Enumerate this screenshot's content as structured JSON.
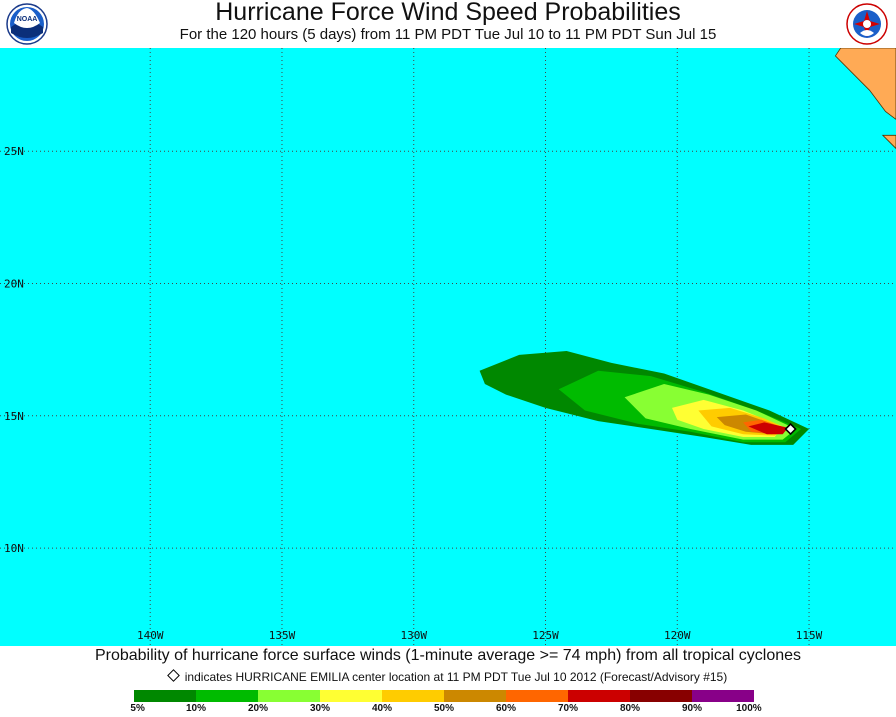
{
  "header": {
    "title": "Hurricane Force Wind Speed Probabilities",
    "subtitle": "For the 120 hours (5 days) from 11 PM PDT Tue Jul 10 to 11 PM PDT Sun Jul 15",
    "left_logo": "noaa-logo",
    "left_logo_text": "NOAA",
    "right_logo": "nws-logo"
  },
  "map": {
    "ocean_color": "#00ffff",
    "land_color": "#ffaa55",
    "lon_range": [
      -145.7,
      -111.7
    ],
    "lat_range": [
      6.3,
      28.9
    ],
    "lat_labels": [
      {
        "lat": 25,
        "text": "25N"
      },
      {
        "lat": 20,
        "text": "20N"
      },
      {
        "lat": 15,
        "text": "15N"
      },
      {
        "lat": 10,
        "text": "10N"
      }
    ],
    "lon_labels": [
      {
        "lon": -140,
        "text": "140W"
      },
      {
        "lon": -135,
        "text": "135W"
      },
      {
        "lon": -130,
        "text": "130W"
      },
      {
        "lon": -125,
        "text": "125W"
      },
      {
        "lon": -120,
        "text": "120W"
      },
      {
        "lon": -115,
        "text": "115W"
      }
    ],
    "storm_center": {
      "lon": -115.7,
      "lat": 14.5
    },
    "probability_contours": [
      {
        "level": 5,
        "color": "#008800",
        "polygon": [
          [
            -127.5,
            16.7
          ],
          [
            -126.0,
            17.3
          ],
          [
            -124.2,
            17.45
          ],
          [
            -122.5,
            17.0
          ],
          [
            -120.5,
            16.6
          ],
          [
            -118.5,
            15.9
          ],
          [
            -116.5,
            15.2
          ],
          [
            -115.0,
            14.5
          ],
          [
            -115.6,
            13.9
          ],
          [
            -117.2,
            13.9
          ],
          [
            -119.0,
            14.2
          ],
          [
            -121.0,
            14.5
          ],
          [
            -123.0,
            14.8
          ],
          [
            -125.0,
            15.3
          ],
          [
            -126.5,
            15.8
          ],
          [
            -127.3,
            16.2
          ]
        ]
      },
      {
        "level": 10,
        "color": "#00bb00",
        "polygon": [
          [
            -124.5,
            16.0
          ],
          [
            -123.0,
            16.7
          ],
          [
            -121.0,
            16.5
          ],
          [
            -119.0,
            15.9
          ],
          [
            -117.0,
            15.2
          ],
          [
            -115.3,
            14.5
          ],
          [
            -115.9,
            14.0
          ],
          [
            -117.5,
            14.0
          ],
          [
            -119.5,
            14.4
          ],
          [
            -121.5,
            14.7
          ],
          [
            -123.5,
            15.2
          ]
        ]
      },
      {
        "level": 20,
        "color": "#88ff33",
        "polygon": [
          [
            -122.0,
            15.7
          ],
          [
            -120.5,
            16.2
          ],
          [
            -118.8,
            15.8
          ],
          [
            -117.0,
            15.2
          ],
          [
            -115.5,
            14.5
          ],
          [
            -116.0,
            14.1
          ],
          [
            -117.5,
            14.1
          ],
          [
            -119.5,
            14.5
          ],
          [
            -121.2,
            14.9
          ]
        ]
      },
      {
        "level": 30,
        "color": "#ffff33",
        "polygon": [
          [
            -120.2,
            15.3
          ],
          [
            -119.0,
            15.6
          ],
          [
            -117.5,
            15.2
          ],
          [
            -116.0,
            14.6
          ],
          [
            -116.3,
            14.2
          ],
          [
            -117.5,
            14.2
          ],
          [
            -119.0,
            14.5
          ],
          [
            -120.0,
            14.85
          ]
        ]
      },
      {
        "level": 40,
        "color": "#ffcc00",
        "polygon": [
          [
            -119.2,
            15.2
          ],
          [
            -118.0,
            15.3
          ],
          [
            -116.7,
            14.9
          ],
          [
            -115.8,
            14.5
          ],
          [
            -116.3,
            14.25
          ],
          [
            -117.5,
            14.3
          ],
          [
            -118.7,
            14.6
          ]
        ]
      },
      {
        "level": 50,
        "color": "#cc8800",
        "polygon": [
          [
            -118.5,
            14.95
          ],
          [
            -117.4,
            15.05
          ],
          [
            -116.4,
            14.7
          ],
          [
            -115.9,
            14.5
          ],
          [
            -116.4,
            14.3
          ],
          [
            -117.4,
            14.4
          ],
          [
            -118.2,
            14.65
          ]
        ]
      },
      {
        "level": 60,
        "color": "#ff6600",
        "polygon": [
          [
            -117.5,
            14.75
          ],
          [
            -116.8,
            14.85
          ],
          [
            -116.1,
            14.6
          ],
          [
            -116.4,
            14.32
          ],
          [
            -117.2,
            14.4
          ]
        ]
      },
      {
        "level": 70,
        "color": "#cc0000",
        "polygon": [
          [
            -117.3,
            14.6
          ],
          [
            -116.7,
            14.75
          ],
          [
            -115.8,
            14.55
          ],
          [
            -116.0,
            14.3
          ],
          [
            -116.6,
            14.3
          ]
        ]
      }
    ],
    "land_polygons": [
      {
        "name": "baja-california",
        "polygon": [
          [
            -113.8,
            28.9
          ],
          [
            -111.7,
            28.9
          ],
          [
            -111.7,
            26.2
          ],
          [
            -112.1,
            26.5
          ],
          [
            -112.7,
            27.3
          ],
          [
            -113.4,
            28.0
          ],
          [
            -114.0,
            28.6
          ]
        ]
      },
      {
        "name": "baja-tip",
        "polygon": [
          [
            -112.2,
            25.6
          ],
          [
            -111.7,
            25.1
          ],
          [
            -111.7,
            25.6
          ]
        ]
      }
    ]
  },
  "footer": {
    "main_text": "Probability of hurricane force surface winds (1-minute average >= 74 mph) from all tropical cyclones",
    "note_text": "indicates HURRICANE EMILIA center location at 11 PM PDT Tue Jul 10 2012 (Forecast/Advisory #15)",
    "legend": {
      "colors": [
        "#008800",
        "#00bb00",
        "#88ff33",
        "#ffff33",
        "#ffcc00",
        "#cc8800",
        "#ff6600",
        "#cc0000",
        "#880000",
        "#880088"
      ],
      "labels": [
        "5%",
        "10%",
        "20%",
        "30%",
        "40%",
        "50%",
        "60%",
        "70%",
        "80%",
        "90%",
        "100%"
      ]
    }
  }
}
